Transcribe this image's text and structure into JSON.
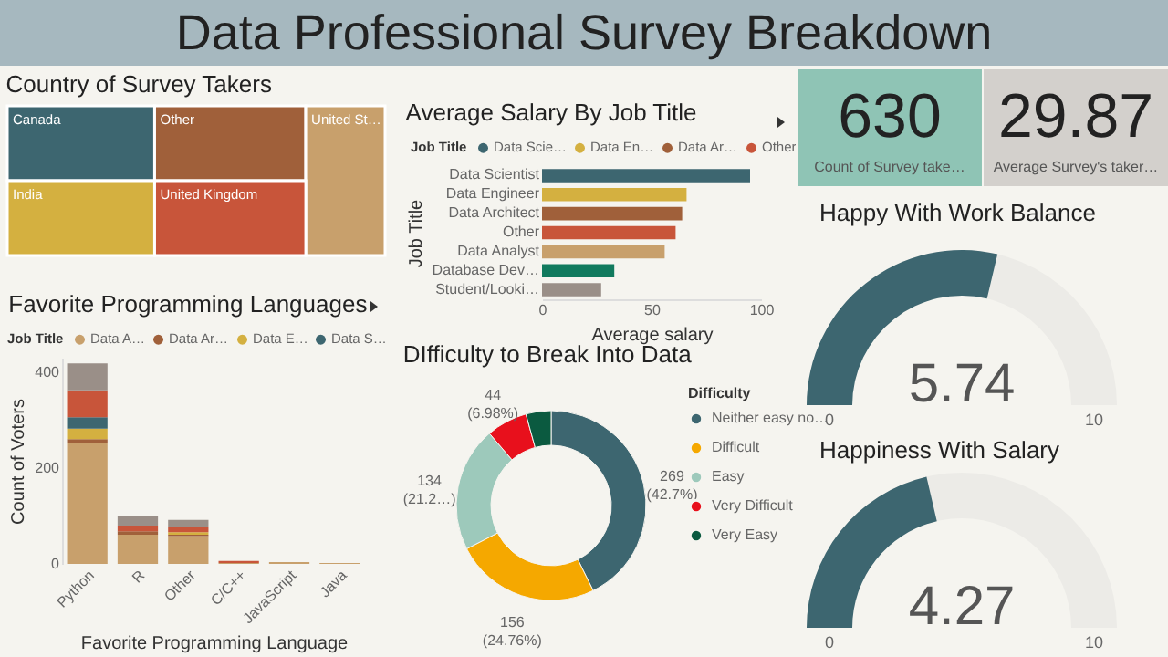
{
  "chart_data": [
    {
      "type": "other",
      "title": "Data Professional Survey Breakdown"
    },
    {
      "type": "other",
      "title": "Country of Survey Takers",
      "categories": [
        "Canada",
        "Other",
        "United St…",
        "India",
        "United Kingdom"
      ],
      "colors": [
        "#3d6670",
        "#a0603a",
        "#c8a06c",
        "#d4b040",
        "#c8553a"
      ]
    },
    {
      "type": "bar",
      "title": "Average Salary By Job Title",
      "orientation": "horizontal",
      "xlabel": "Average salary",
      "ylabel": "Job Title",
      "legend": "top left",
      "legend_title": "Job Title",
      "categories": [
        "Data Scientist",
        "Data Engineer",
        "Data Architect",
        "Other",
        "Data Analyst",
        "Database Dev…",
        "Student/Looki…"
      ],
      "xlim": [
        0,
        100
      ],
      "xticks": [
        0,
        50,
        100
      ],
      "series": [
        {
          "name": "Data Scie…",
          "color": "#3d6670",
          "values": [
            95,
            null,
            null,
            null,
            null,
            null,
            null
          ]
        },
        {
          "name": "Data En…",
          "color": "#d4b040",
          "values": [
            null,
            66,
            null,
            null,
            null,
            null,
            null
          ]
        },
        {
          "name": "Data Ar…",
          "color": "#a0603a",
          "values": [
            null,
            null,
            64,
            null,
            null,
            null,
            null
          ]
        },
        {
          "name": "Other",
          "color": "#c8553a",
          "values": [
            null,
            null,
            null,
            61,
            null,
            null,
            null
          ]
        },
        {
          "color": "#c8a06c",
          "values": [
            null,
            null,
            null,
            null,
            56,
            null,
            null
          ]
        },
        {
          "color": "#117a5e",
          "values": [
            null,
            null,
            null,
            null,
            null,
            33,
            null
          ]
        },
        {
          "color": "#9a8f88",
          "values": [
            null,
            null,
            null,
            null,
            null,
            null,
            27
          ]
        }
      ]
    },
    {
      "type": "bar",
      "title": "Favorite Programming Languages",
      "stacked": true,
      "xlabel": "Favorite Programming Language",
      "ylabel": "Count of Voters",
      "legend": "top left",
      "legend_title": "Job Title",
      "categories": [
        "Python",
        "R",
        "Other",
        "C/C++",
        "JavaScript",
        "Java"
      ],
      "ylim": [
        0,
        430
      ],
      "yticks": [
        0,
        200,
        400
      ],
      "series": [
        {
          "name": "Data A…",
          "color": "#c8a06c",
          "values": [
            253,
            61,
            58,
            2,
            4,
            2
          ]
        },
        {
          "name": "Data Ar…",
          "color": "#a0603a",
          "values": [
            7,
            7,
            3,
            null,
            null,
            null
          ]
        },
        {
          "name": "Data E…",
          "color": "#d4b040",
          "values": [
            22,
            null,
            5,
            null,
            null,
            null
          ]
        },
        {
          "name": "Data S…",
          "color": "#3d6670",
          "values": [
            24,
            null,
            null,
            null,
            null,
            null
          ]
        },
        {
          "color": "#c8553a",
          "values": [
            56,
            12,
            12,
            4,
            null,
            null
          ]
        },
        {
          "color": "#9a8f88",
          "values": [
            56,
            19,
            14,
            null,
            null,
            null
          ]
        }
      ]
    },
    {
      "type": "donut",
      "title": "DIfficulty to Break Into Data",
      "legend": "right",
      "legend_title": "Difficulty",
      "categories": [
        "Neither easy no…",
        "Difficult",
        "Easy",
        "Very Difficult",
        "Very Easy"
      ],
      "values": [
        269,
        156,
        134,
        44,
        27
      ],
      "colors": [
        "#3d6670",
        "#f5a800",
        "#9dc9bb",
        "#e8101c",
        "#0b5a40"
      ],
      "value_labels": [
        "269 (42.7%)",
        "156 (24.76%)",
        "134 (21.2…)",
        "44 (6.98%)",
        null
      ]
    },
    {
      "type": "other",
      "categories": [
        "Count of Survey take…",
        "Average Survey's taker…"
      ],
      "values": [
        630,
        29.87
      ],
      "data_labels": true,
      "colors": [
        "#8fc4b5",
        "#d3d0cc"
      ]
    },
    {
      "type": "other",
      "title": "Happy With Work Balance",
      "values": [
        5.74
      ],
      "data_labels": true,
      "annotations": [
        "0",
        "10"
      ],
      "color": "#3d6670"
    },
    {
      "type": "other",
      "title": "Happiness With Salary",
      "values": [
        4.27
      ],
      "data_labels": true,
      "annotations": [
        "0",
        "10"
      ],
      "color": "#3d6670"
    }
  ]
}
